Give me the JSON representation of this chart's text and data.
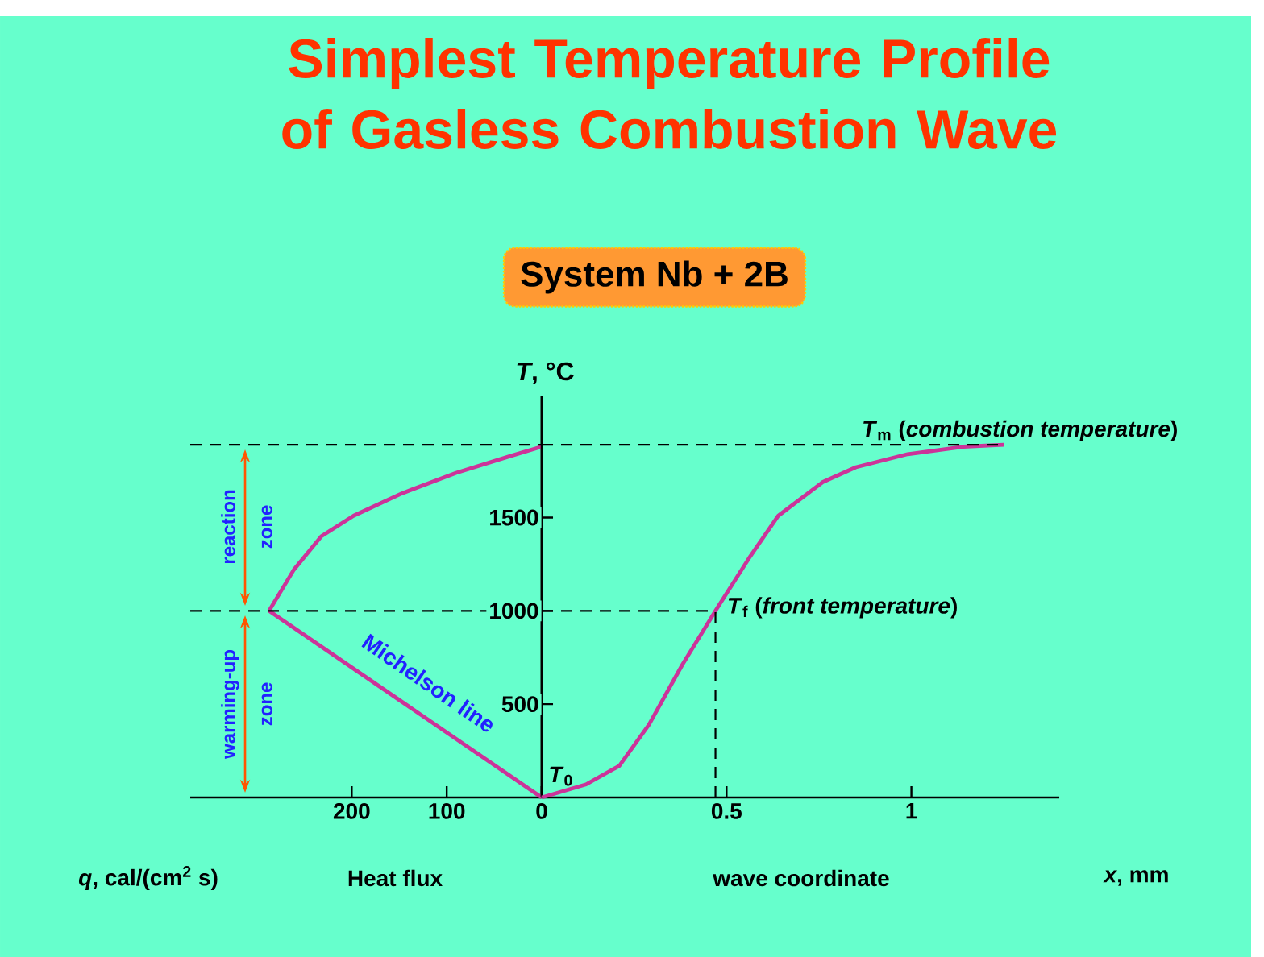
{
  "chart_data": [
    {
      "type": "line",
      "title": "Simplest Temperature Profile of Gasless Combustion Wave",
      "xlabel": "*q*, cal/(cm$^{2}$ s)",
      "xlim": [
        370,
        0
      ],
      "xticks": [
        200,
        100,
        {
          "value": 0,
          "label": null
        }
      ],
      "ylim": [
        0,
        2150
      ],
      "tick_labels": "x",
      "series": [
        {
          "color": "#cc3399",
          "x": [
            287,
            261,
            232,
            198,
            147,
            90,
            33,
            0
          ],
          "values": [
            1000,
            1220,
            1400,
            1510,
            1630,
            1740,
            1830,
            1880
          ]
        },
        {
          "color": "#cc3399",
          "x": [
            287,
            0
          ],
          "values": [
            1000,
            0
          ]
        }
      ],
      "ref_lines": [
        {
          "axis": "y",
          "value": 1890,
          "line_style": "dashed"
        },
        {
          "axis": "y",
          "value": 1000,
          "line_style": "dashed"
        }
      ],
      "annotations": [
        "Heat flux",
        "Michelson line",
        "reaction zone",
        "warming-up zone"
      ]
    },
    {
      "type": "line",
      "subtitle": "System Nb + 2B",
      "xlabel": "*x*, mm",
      "ylabel": "*T*, °C",
      "xlim": [
        0,
        1.4
      ],
      "xticks": [
        0,
        0.5,
        1
      ],
      "ylim": [
        0,
        2150
      ],
      "yticks": [
        500,
        1000,
        1500
      ],
      "series": [
        {
          "color": "#cc3399",
          "x": [
            0,
            0.12,
            0.21,
            0.29,
            0.38,
            0.47,
            0.56,
            0.64,
            0.76,
            0.85,
            0.99,
            1.14,
            1.25
          ],
          "values": [
            0,
            70,
            170,
            390,
            710,
            1000,
            1280,
            1510,
            1690,
            1770,
            1840,
            1880,
            1890
          ]
        }
      ],
      "ref_lines": [
        {
          "axis": "y",
          "value": 1890,
          "label": "*T*$_{m}$ (*combustion temperature*)",
          "line_style": "dashed"
        },
        {
          "axis": "y",
          "value": 1000,
          "label": "*T*$_{f}$ (*front temperature*)",
          "line_style": "dashed"
        },
        {
          "axis": "x",
          "value": 0.47,
          "line_style": "dashed"
        }
      ],
      "annotations": [
        {
          "text": "*T*$_{0}$",
          "x": 0,
          "y": 0
        },
        "wave coordinate"
      ]
    }
  ]
}
